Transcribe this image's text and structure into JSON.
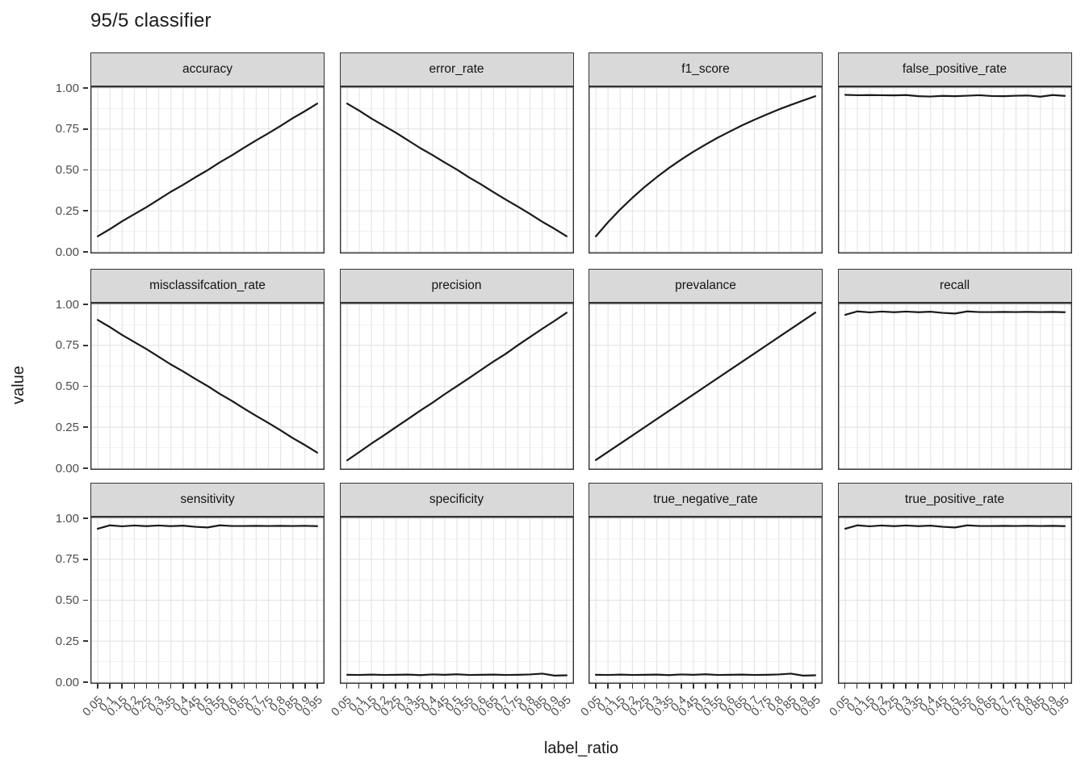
{
  "title": "95/5 classifier",
  "x_axis": {
    "title": "label_ratio",
    "tick_labels": [
      "0.05",
      "0.1",
      "0.15",
      "0.2",
      "0.25",
      "0.3",
      "0.35",
      "0.4",
      "0.45",
      "0.5",
      "0.55",
      "0.6",
      "0.65",
      "0.7",
      "0.75",
      "0.8",
      "0.85",
      "0.9",
      "0.95"
    ]
  },
  "y_axis": {
    "title": "value",
    "tick_labels": [
      "1.00",
      "0.75",
      "0.50",
      "0.25",
      "0.00"
    ]
  },
  "colors": {
    "background": "#FFFFFF",
    "line": "#1A1A1A",
    "strip_fill": "#D9D9D9",
    "panel_border": "#333333",
    "grid_major": "#E6E6E6",
    "grid_minor": "#F1F1F1",
    "tick_mark": "#333333",
    "tick_label": "#4D4D4D",
    "title_text": "#1A1A1A"
  },
  "chart_data": {
    "type": "line",
    "faceted": true,
    "facet_layout": {
      "rows": 3,
      "cols": 4
    },
    "title": "95/5 classifier",
    "xlabel": "label_ratio",
    "ylabel": "value",
    "ylim": [
      0,
      1
    ],
    "y_major_ticks": [
      0,
      0.25,
      0.5,
      0.75,
      1.0
    ],
    "y_minor_ticks": [
      0.125,
      0.375,
      0.625,
      0.875
    ],
    "grid": true,
    "legend": "none",
    "x": [
      0.05,
      0.1,
      0.15,
      0.2,
      0.25,
      0.3,
      0.35,
      0.4,
      0.45,
      0.5,
      0.55,
      0.6,
      0.65,
      0.7,
      0.75,
      0.8,
      0.85,
      0.9,
      0.95
    ],
    "series": [
      {
        "name": "accuracy",
        "values": [
          0.095,
          0.139,
          0.187,
          0.23,
          0.273,
          0.32,
          0.367,
          0.409,
          0.455,
          0.498,
          0.546,
          0.589,
          0.636,
          0.681,
          0.724,
          0.769,
          0.816,
          0.859,
          0.905
        ]
      },
      {
        "name": "error_rate",
        "values": [
          0.905,
          0.861,
          0.813,
          0.77,
          0.727,
          0.68,
          0.633,
          0.591,
          0.545,
          0.502,
          0.454,
          0.411,
          0.364,
          0.319,
          0.276,
          0.231,
          0.184,
          0.141,
          0.095
        ]
      },
      {
        "name": "f1_score",
        "values": [
          0.095,
          0.181,
          0.259,
          0.33,
          0.396,
          0.456,
          0.512,
          0.563,
          0.611,
          0.655,
          0.697,
          0.735,
          0.772,
          0.806,
          0.838,
          0.869,
          0.897,
          0.924,
          0.95
        ]
      },
      {
        "name": "false_positive_rate",
        "values": [
          0.958,
          0.956,
          0.957,
          0.956,
          0.955,
          0.957,
          0.95,
          0.948,
          0.952,
          0.95,
          0.953,
          0.956,
          0.951,
          0.95,
          0.953,
          0.954,
          0.947,
          0.957,
          0.952
        ]
      },
      {
        "name": "misclassifcation_rate",
        "values": [
          0.905,
          0.861,
          0.813,
          0.77,
          0.727,
          0.68,
          0.633,
          0.591,
          0.545,
          0.502,
          0.454,
          0.411,
          0.364,
          0.319,
          0.276,
          0.231,
          0.184,
          0.141,
          0.095
        ]
      },
      {
        "name": "precision",
        "values": [
          0.048,
          0.099,
          0.151,
          0.2,
          0.251,
          0.301,
          0.352,
          0.4,
          0.452,
          0.501,
          0.55,
          0.601,
          0.651,
          0.698,
          0.751,
          0.801,
          0.851,
          0.899,
          0.949
        ]
      },
      {
        "name": "prevalance",
        "values": [
          0.05,
          0.1,
          0.15,
          0.2,
          0.25,
          0.3,
          0.35,
          0.4,
          0.45,
          0.5,
          0.55,
          0.6,
          0.65,
          0.7,
          0.75,
          0.8,
          0.85,
          0.9,
          0.95
        ]
      },
      {
        "name": "recall",
        "values": [
          0.936,
          0.957,
          0.951,
          0.956,
          0.952,
          0.956,
          0.952,
          0.955,
          0.948,
          0.944,
          0.957,
          0.953,
          0.953,
          0.954,
          0.953,
          0.954,
          0.953,
          0.954,
          0.952
        ]
      },
      {
        "name": "sensitivity",
        "values": [
          0.936,
          0.957,
          0.951,
          0.956,
          0.952,
          0.956,
          0.952,
          0.955,
          0.948,
          0.944,
          0.957,
          0.953,
          0.953,
          0.954,
          0.953,
          0.954,
          0.953,
          0.954,
          0.952
        ]
      },
      {
        "name": "specificity",
        "values": [
          0.045,
          0.044,
          0.046,
          0.044,
          0.045,
          0.046,
          0.043,
          0.047,
          0.045,
          0.048,
          0.044,
          0.045,
          0.046,
          0.044,
          0.045,
          0.047,
          0.052,
          0.04,
          0.042
        ]
      },
      {
        "name": "true_negative_rate",
        "values": [
          0.045,
          0.044,
          0.046,
          0.044,
          0.045,
          0.046,
          0.043,
          0.047,
          0.045,
          0.048,
          0.044,
          0.045,
          0.046,
          0.044,
          0.045,
          0.047,
          0.052,
          0.04,
          0.042
        ]
      },
      {
        "name": "true_positive_rate",
        "values": [
          0.936,
          0.957,
          0.951,
          0.956,
          0.952,
          0.956,
          0.952,
          0.955,
          0.948,
          0.944,
          0.957,
          0.953,
          0.953,
          0.954,
          0.953,
          0.954,
          0.953,
          0.954,
          0.952
        ]
      }
    ]
  }
}
